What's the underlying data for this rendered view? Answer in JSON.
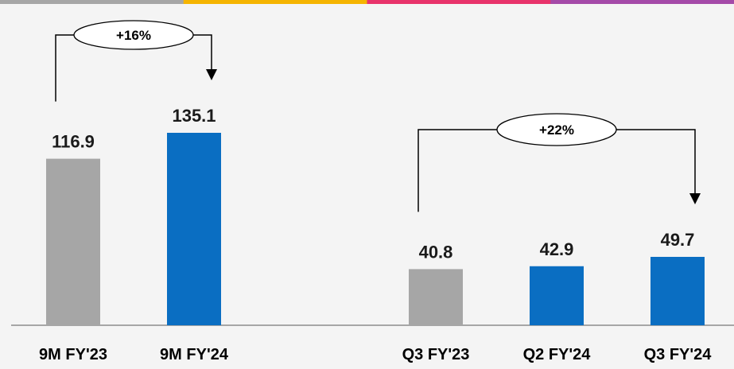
{
  "colors": {
    "top_stripe": [
      "#a6a6a6",
      "#f5b400",
      "#e8336b",
      "#a44aa8"
    ],
    "bar_prior": "#a6a6a6",
    "bar_current": "#0a6ec2",
    "baseline": "#a6a6a6",
    "background": "#f4f4f4"
  },
  "chart_data": [
    {
      "type": "bar",
      "categories": [
        "9M FY'23",
        "9M FY'24"
      ],
      "values": [
        116.9,
        135.1
      ],
      "value_labels": [
        "116.9",
        "135.1"
      ],
      "bar_colors": [
        "#a6a6a6",
        "#0a6ec2"
      ],
      "growth": {
        "label": "+16%",
        "from_index": 0,
        "to_index": 1
      },
      "ylim": [
        0,
        135.1
      ],
      "grid": false,
      "legend": "none"
    },
    {
      "type": "bar",
      "categories": [
        "Q3 FY'23",
        "Q2 FY'24",
        "Q3 FY'24"
      ],
      "values": [
        40.8,
        42.9,
        49.7
      ],
      "value_labels": [
        "40.8",
        "42.9",
        "49.7"
      ],
      "bar_colors": [
        "#a6a6a6",
        "#0a6ec2",
        "#0a6ec2"
      ],
      "growth": {
        "label": "+22%",
        "from_index": 0,
        "to_index": 2
      },
      "ylim": [
        0,
        49.7
      ],
      "grid": false,
      "legend": "none"
    }
  ]
}
